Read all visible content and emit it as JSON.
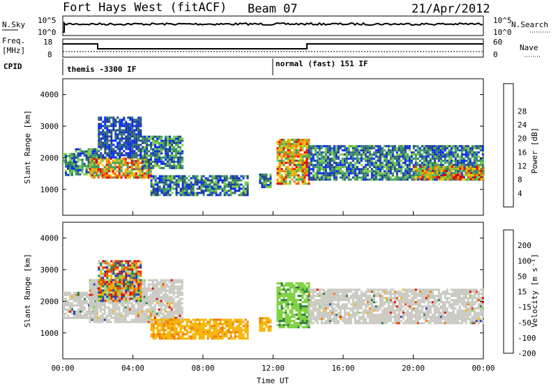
{
  "header": {
    "station": "Fort Hays West (fitACF)",
    "beam": "Beam 07",
    "date": "21/Apr/2012"
  },
  "noise_panel": {
    "left_label": "N.Sky",
    "right_label": "N.Search",
    "ticks": [
      "10^5",
      "10^0"
    ]
  },
  "freq_panel": {
    "left_label_line1": "Freq.",
    "left_label_line2": "[MHz]",
    "right_label": "Nave",
    "left_ticks": [
      "18",
      "8"
    ],
    "right_ticks": [
      "60",
      "0"
    ]
  },
  "cpid": {
    "label": "CPID",
    "mode1": "themis -3300 IF",
    "mode2": "normal (fast) 151 IF"
  },
  "chart_data": [
    {
      "type": "heatmap",
      "name": "power",
      "ylabel": "Slant Range [km]",
      "yticks": [
        1000,
        2000,
        3000,
        4000
      ],
      "ylim": [
        180,
        4500
      ],
      "xlim": [
        0,
        24
      ],
      "colorbar": {
        "label": "Power [dB]",
        "ticks": [
          "4",
          "8",
          "12",
          "16",
          "20",
          "24",
          "28"
        ],
        "colors": [
          "#0024ff",
          "#1a3c8c",
          "#2e6e6e",
          "#3ca05a",
          "#7ccd3c",
          "#f0c800",
          "#f5a000",
          "#f06400",
          "#e60000"
        ]
      },
      "echo_regions": [
        {
          "t0": 0.0,
          "t1": 0.7,
          "r0": 1450,
          "r1": 2150,
          "level": "medium"
        },
        {
          "t0": 0.7,
          "t1": 2.0,
          "r0": 1500,
          "r1": 2300,
          "level": "medium"
        },
        {
          "t0": 1.5,
          "t1": 5.0,
          "r0": 1350,
          "r1": 2000,
          "level": "high"
        },
        {
          "t0": 4.5,
          "t1": 6.8,
          "r0": 1700,
          "r1": 2700,
          "level": "medium"
        },
        {
          "t0": 2.0,
          "t1": 4.5,
          "r0": 2000,
          "r1": 3300,
          "level": "low"
        },
        {
          "t0": 5.0,
          "t1": 10.5,
          "r0": 800,
          "r1": 1450,
          "level": "medium"
        },
        {
          "t0": 11.2,
          "t1": 11.8,
          "r0": 1100,
          "r1": 1500,
          "level": "medium"
        },
        {
          "t0": 12.2,
          "t1": 14.0,
          "r0": 1200,
          "r1": 2600,
          "level": "high"
        },
        {
          "t0": 14.0,
          "t1": 24.0,
          "r0": 1300,
          "r1": 2400,
          "level": "medium"
        },
        {
          "t0": 20.0,
          "t1": 24.0,
          "r0": 1350,
          "r1": 1750,
          "level": "high"
        }
      ]
    },
    {
      "type": "heatmap",
      "name": "velocity",
      "ylabel": "Slant Range [km]",
      "yticks": [
        1000,
        2000,
        3000,
        4000
      ],
      "ylim": [
        180,
        4500
      ],
      "xlim": [
        0,
        24
      ],
      "xticks": [
        "00:00",
        "04:00",
        "08:00",
        "12:00",
        "16:00",
        "20:00",
        "00:00"
      ],
      "xlabel": "Time UT",
      "colorbar": {
        "label": "Velocity [m s⁻¹]",
        "ticks": [
          "200",
          "100",
          "50",
          "15",
          "-15",
          "-50",
          "-100",
          "-200"
        ],
        "colors": [
          "#1f3cb4",
          "#2a7a40",
          "#7cd03c",
          "#c8c8c0",
          "#f5b400",
          "#f07800",
          "#e63c00",
          "#e60000"
        ]
      },
      "echo_regions": [
        {
          "t0": 0.0,
          "t1": 2.0,
          "r0": 1450,
          "r1": 2300,
          "level": "ground"
        },
        {
          "t0": 1.5,
          "t1": 6.8,
          "r0": 1350,
          "r1": 2700,
          "level": "ground"
        },
        {
          "t0": 2.0,
          "t1": 4.5,
          "r0": 2000,
          "r1": 3300,
          "level": "mixed"
        },
        {
          "t0": 5.0,
          "t1": 10.5,
          "r0": 800,
          "r1": 1450,
          "level": "negative"
        },
        {
          "t0": 11.2,
          "t1": 11.8,
          "r0": 1100,
          "r1": 1500,
          "level": "negative"
        },
        {
          "t0": 12.2,
          "t1": 14.0,
          "r0": 1200,
          "r1": 2600,
          "level": "positive"
        },
        {
          "t0": 14.0,
          "t1": 24.0,
          "r0": 1300,
          "r1": 2400,
          "level": "ground"
        }
      ]
    }
  ]
}
